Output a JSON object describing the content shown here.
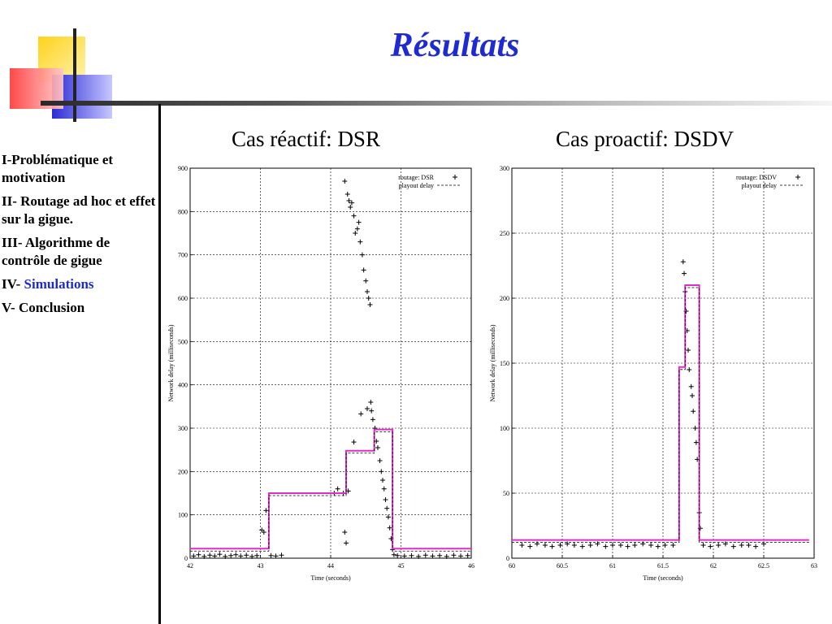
{
  "slide": {
    "title": "Résultats"
  },
  "sidebar": {
    "items": [
      {
        "prefix": "I-",
        "text": "Problématique et motivation",
        "highlight": false
      },
      {
        "prefix": "II- ",
        "text": "Routage ad hoc et effet sur la gigue.",
        "highlight": false
      },
      {
        "prefix": "III- ",
        "text": "Algorithme de contrôle de gigue",
        "highlight": false
      },
      {
        "prefix": "IV- ",
        "text": "Simulations",
        "highlight": true
      },
      {
        "prefix": "V- ",
        "text": "Conclusion",
        "highlight": false
      }
    ]
  },
  "colors": {
    "title": "#1f2bd1",
    "accent": "#1f2bd1",
    "playout": "#dd2ec8",
    "logo_yellow": "#ffd21a",
    "logo_red": "#ff3a3a",
    "logo_blue": "#2b2bd6"
  },
  "chart_data": [
    {
      "type": "scatter",
      "title": "Cas réactif: DSR",
      "xlabel": "Time (seconds)",
      "ylabel": "Network delay (milliseconds)",
      "xlim": [
        42,
        46
      ],
      "ylim": [
        0,
        900
      ],
      "xticks": [
        42,
        43,
        44,
        45,
        46
      ],
      "yticks": [
        0,
        100,
        200,
        300,
        400,
        500,
        600,
        700,
        800,
        900
      ],
      "grid": true,
      "legend_position": "top-right",
      "series": [
        {
          "name": "routage: DSR",
          "style": "points",
          "points": [
            [
              42.05,
              5
            ],
            [
              42.12,
              8
            ],
            [
              42.2,
              4
            ],
            [
              42.28,
              7
            ],
            [
              42.35,
              5
            ],
            [
              42.42,
              9
            ],
            [
              42.5,
              4
            ],
            [
              42.58,
              6
            ],
            [
              42.65,
              8
            ],
            [
              42.72,
              5
            ],
            [
              42.8,
              7
            ],
            [
              42.88,
              4
            ],
            [
              42.95,
              6
            ],
            [
              43.02,
              65
            ],
            [
              43.05,
              60
            ],
            [
              43.08,
              110
            ],
            [
              43.15,
              6
            ],
            [
              43.22,
              5
            ],
            [
              43.3,
              7
            ],
            [
              44.05,
              150
            ],
            [
              44.1,
              160
            ],
            [
              44.18,
              150
            ],
            [
              44.2,
              60
            ],
            [
              44.22,
              35
            ],
            [
              44.25,
              155
            ],
            [
              44.2,
              870
            ],
            [
              44.24,
              840
            ],
            [
              44.26,
              825
            ],
            [
              44.28,
              810
            ],
            [
              44.3,
              820
            ],
            [
              44.33,
              790
            ],
            [
              44.35,
              750
            ],
            [
              44.38,
              760
            ],
            [
              44.4,
              775
            ],
            [
              44.42,
              730
            ],
            [
              44.45,
              700
            ],
            [
              44.47,
              665
            ],
            [
              44.5,
              640
            ],
            [
              44.52,
              615
            ],
            [
              44.54,
              600
            ],
            [
              44.56,
              585
            ],
            [
              44.33,
              268
            ],
            [
              44.43,
              333
            ],
            [
              44.52,
              345
            ],
            [
              44.57,
              360
            ],
            [
              44.58,
              340
            ],
            [
              44.6,
              320
            ],
            [
              44.63,
              300
            ],
            [
              44.65,
              270
            ],
            [
              44.67,
              255
            ],
            [
              44.7,
              225
            ],
            [
              44.72,
              200
            ],
            [
              44.74,
              180
            ],
            [
              44.76,
              160
            ],
            [
              44.78,
              135
            ],
            [
              44.8,
              115
            ],
            [
              44.82,
              95
            ],
            [
              44.84,
              70
            ],
            [
              44.86,
              45
            ],
            [
              44.88,
              20
            ],
            [
              44.9,
              8
            ],
            [
              44.95,
              6
            ],
            [
              45.05,
              5
            ],
            [
              45.15,
              6
            ],
            [
              45.25,
              4
            ],
            [
              45.35,
              7
            ],
            [
              45.45,
              5
            ],
            [
              45.55,
              6
            ],
            [
              45.65,
              4
            ],
            [
              45.75,
              7
            ],
            [
              45.85,
              5
            ],
            [
              45.95,
              6
            ]
          ]
        },
        {
          "name": "playout delay",
          "style": "step",
          "points": [
            [
              42,
              22
            ],
            [
              43.12,
              22
            ],
            [
              43.12,
              150
            ],
            [
              44.22,
              150
            ],
            [
              44.22,
              248
            ],
            [
              44.62,
              248
            ],
            [
              44.62,
              297
            ],
            [
              44.88,
              297
            ],
            [
              44.88,
              22
            ],
            [
              46,
              22
            ]
          ]
        }
      ]
    },
    {
      "type": "scatter",
      "title": "Cas proactif: DSDV",
      "xlabel": "Time (seconds)",
      "ylabel": "Network delay (milliseconds)",
      "xlim": [
        60,
        63
      ],
      "ylim": [
        0,
        300
      ],
      "xticks": [
        60,
        60.5,
        61,
        61.5,
        62,
        62.5,
        63
      ],
      "yticks": [
        0,
        50,
        100,
        150,
        200,
        250,
        300
      ],
      "grid": true,
      "legend_position": "top-right",
      "series": [
        {
          "name": "routage: DSDV",
          "style": "points",
          "points": [
            [
              60.1,
              10
            ],
            [
              60.18,
              9
            ],
            [
              60.25,
              11
            ],
            [
              60.33,
              10
            ],
            [
              60.4,
              9
            ],
            [
              60.48,
              10
            ],
            [
              60.55,
              11
            ],
            [
              60.62,
              10
            ],
            [
              60.7,
              9
            ],
            [
              60.78,
              10
            ],
            [
              60.85,
              11
            ],
            [
              60.93,
              9
            ],
            [
              61.0,
              10
            ],
            [
              61.08,
              10
            ],
            [
              61.15,
              9
            ],
            [
              61.22,
              10
            ],
            [
              61.3,
              11
            ],
            [
              61.38,
              10
            ],
            [
              61.45,
              9
            ],
            [
              61.52,
              10
            ],
            [
              61.6,
              10
            ],
            [
              61.7,
              228
            ],
            [
              61.71,
              219
            ],
            [
              61.72,
              205
            ],
            [
              61.73,
              190
            ],
            [
              61.74,
              175
            ],
            [
              61.75,
              160
            ],
            [
              61.76,
              145
            ],
            [
              61.78,
              132
            ],
            [
              61.79,
              125
            ],
            [
              61.8,
              113
            ],
            [
              61.82,
              100
            ],
            [
              61.83,
              89
            ],
            [
              61.84,
              76
            ],
            [
              61.86,
              35
            ],
            [
              61.87,
              23
            ],
            [
              61.9,
              10
            ],
            [
              61.97,
              9
            ],
            [
              62.05,
              10
            ],
            [
              62.12,
              11
            ],
            [
              62.2,
              9
            ],
            [
              62.28,
              10
            ],
            [
              62.35,
              10
            ],
            [
              62.42,
              9
            ],
            [
              62.5,
              11
            ]
          ]
        },
        {
          "name": "playout delay",
          "style": "step",
          "points": [
            [
              60,
              14
            ],
            [
              61.66,
              14
            ],
            [
              61.66,
              147
            ],
            [
              61.72,
              147
            ],
            [
              61.72,
              210
            ],
            [
              61.86,
              210
            ],
            [
              61.86,
              14
            ],
            [
              62.95,
              14
            ]
          ]
        }
      ]
    }
  ]
}
